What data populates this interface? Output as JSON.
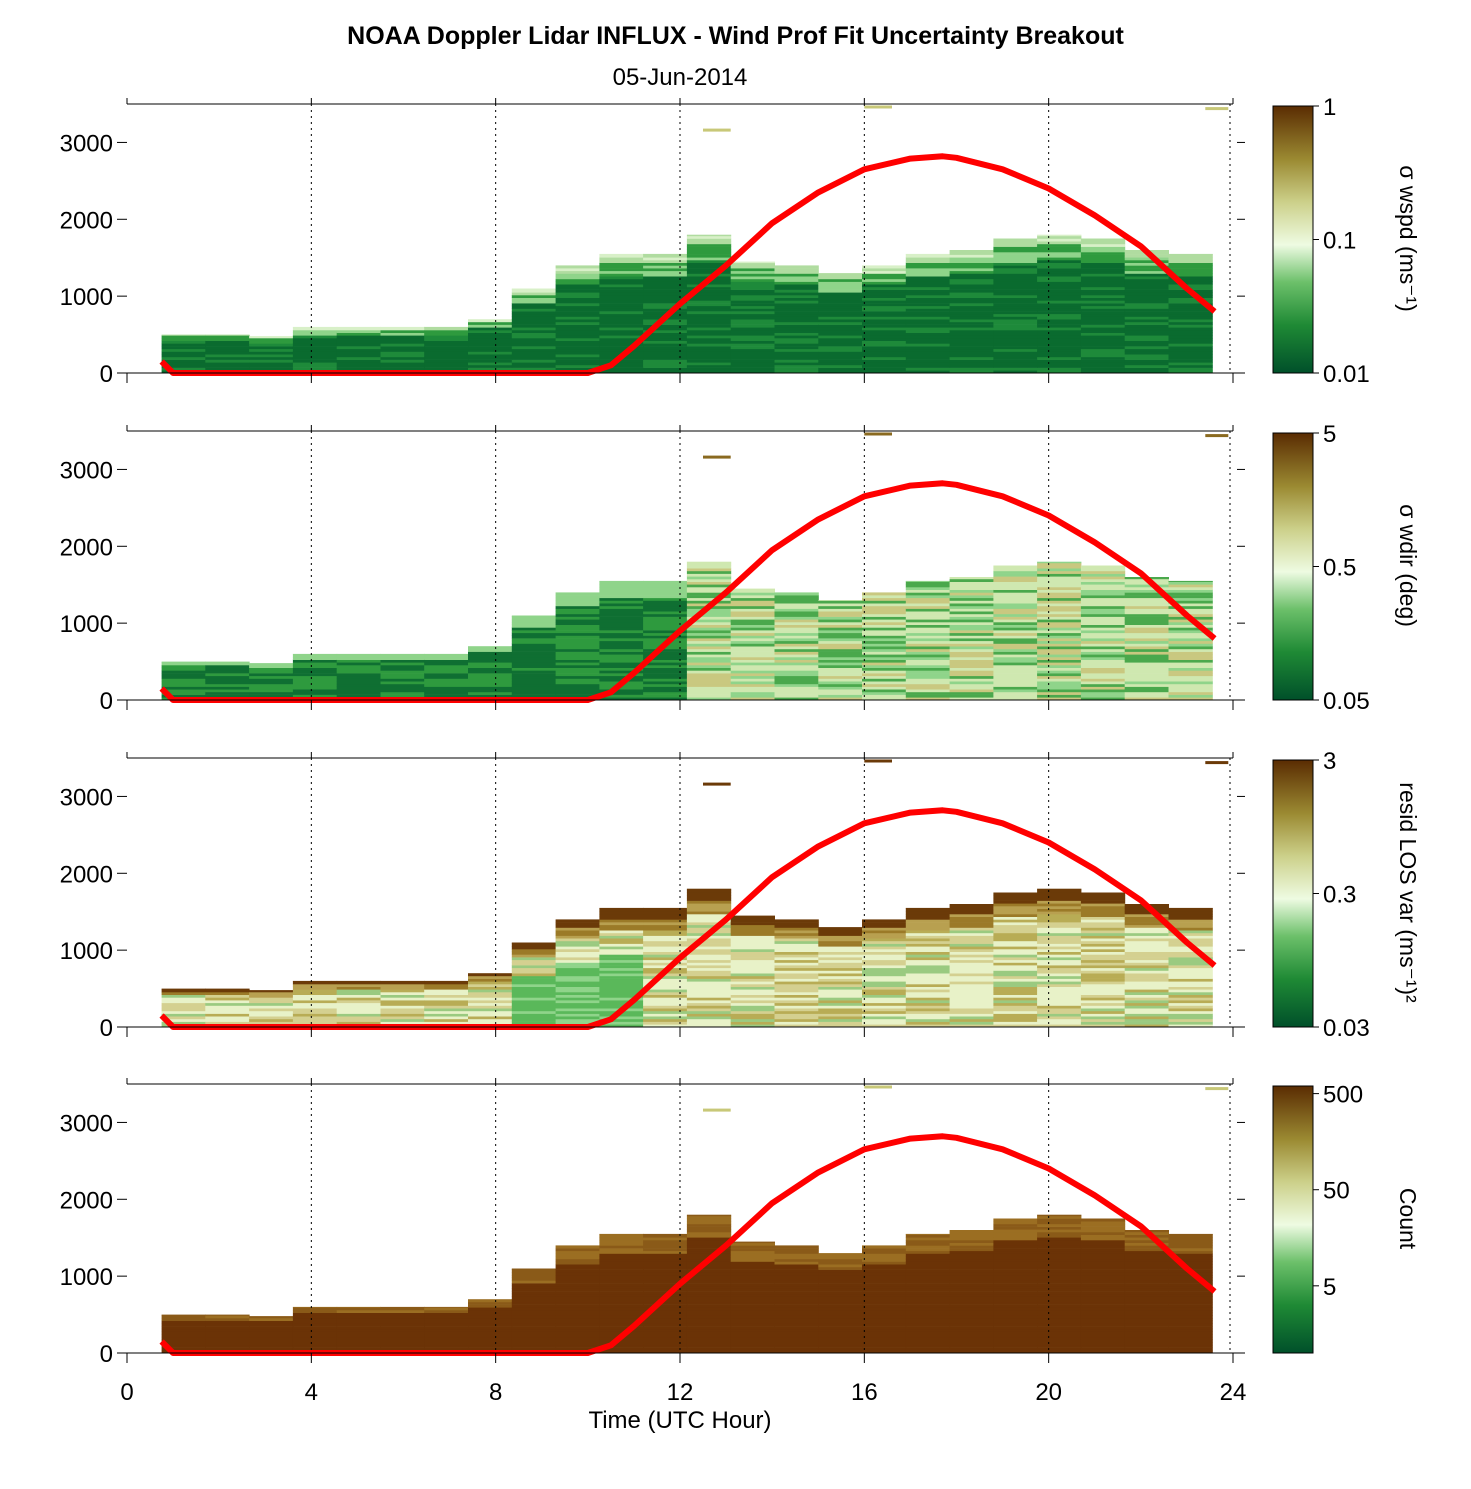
{
  "figure": {
    "title": "NOAA Doppler Lidar INFLUX - Wind Prof Fit Uncertainty Breakout",
    "subtitle": "05-Jun-2014"
  },
  "chart_data": [
    {
      "type": "heatmap",
      "panel": 1,
      "xlabel": "Time (UTC Hour)",
      "ylabel": "",
      "xlim": [
        0,
        24
      ],
      "ylim": [
        0,
        3500
      ],
      "xticks": [
        "0",
        "4",
        "8",
        "12",
        "16",
        "20",
        "24"
      ],
      "yticks": [
        "0",
        "1000",
        "2000",
        "3000"
      ],
      "grid": "vertical dotted lines at x ticks",
      "colorbar": {
        "label": "σ wspd (ms⁻¹)",
        "scale": "log",
        "ticks": [
          "0.01",
          "0.1",
          "1"
        ],
        "range": [
          0.01,
          1
        ]
      },
      "data_top_height": [
        500,
        500,
        480,
        600,
        600,
        600,
        600,
        700,
        1100,
        1400,
        1550,
        1550,
        1800,
        1450,
        1400,
        1300,
        1400,
        1550,
        1600,
        1750,
        1800,
        1750,
        1600,
        1550
      ],
      "overlay": {
        "name": "",
        "color": "#ff0000",
        "description": "red curve",
        "x": [
          0.75,
          1,
          2,
          4,
          6,
          8,
          10,
          10.5,
          11,
          12,
          13,
          14,
          15,
          16,
          17,
          17.7,
          18,
          19,
          20,
          21,
          22,
          23,
          23.6
        ],
        "y": [
          150,
          0,
          0,
          0,
          0,
          0,
          0,
          100,
          350,
          900,
          1400,
          1950,
          2350,
          2650,
          2790,
          2820,
          2800,
          2650,
          2400,
          2050,
          1650,
          1100,
          800
        ]
      }
    },
    {
      "type": "heatmap",
      "panel": 2,
      "xlabel": "Time (UTC Hour)",
      "ylabel": "",
      "xlim": [
        0,
        24
      ],
      "ylim": [
        0,
        3500
      ],
      "xticks": [
        "0",
        "4",
        "8",
        "12",
        "16",
        "20",
        "24"
      ],
      "yticks": [
        "0",
        "1000",
        "2000",
        "3000"
      ],
      "grid": "vertical dotted lines at x ticks",
      "colorbar": {
        "label": "σ wdir (deg)",
        "scale": "log",
        "ticks": [
          "0.05",
          "0.5",
          "5"
        ],
        "range": [
          0.05,
          5
        ]
      },
      "overlay": {
        "name": "",
        "color": "#ff0000",
        "description": "red curve (same as panel 1)"
      }
    },
    {
      "type": "heatmap",
      "panel": 3,
      "xlabel": "Time (UTC Hour)",
      "ylabel": "",
      "xlim": [
        0,
        24
      ],
      "ylim": [
        0,
        3500
      ],
      "xticks": [
        "0",
        "4",
        "8",
        "12",
        "16",
        "20",
        "24"
      ],
      "yticks": [
        "0",
        "1000",
        "2000",
        "3000"
      ],
      "grid": "vertical dotted lines at x ticks",
      "colorbar": {
        "label": "resid LOS var (ms⁻¹)²",
        "scale": "log",
        "ticks": [
          "0.03",
          "0.3",
          "3"
        ],
        "range": [
          0.03,
          3
        ]
      },
      "overlay": {
        "name": "",
        "color": "#ff0000",
        "description": "red curve (same as panel 1)"
      }
    },
    {
      "type": "heatmap",
      "panel": 4,
      "xlabel": "Time (UTC Hour)",
      "ylabel": "",
      "xlim": [
        0,
        24
      ],
      "ylim": [
        0,
        3500
      ],
      "xticks": [
        "0",
        "4",
        "8",
        "12",
        "16",
        "20",
        "24"
      ],
      "yticks": [
        "0",
        "1000",
        "2000",
        "3000"
      ],
      "grid": "vertical dotted lines at x ticks",
      "colorbar": {
        "label": "Count",
        "scale": "log",
        "ticks": [
          "5",
          "50",
          "500"
        ],
        "range": [
          1,
          600
        ]
      },
      "overlay": {
        "name": "",
        "color": "#ff0000",
        "description": "red curve (same as panel 1)"
      }
    }
  ],
  "colors": {
    "dark_green": "#00602a",
    "mid_green": "#2e9a3e",
    "light_green": "#8fd48a",
    "pale": "#eaf8dc",
    "tan": "#b8ac55",
    "brown": "#6b3a08",
    "curve": "#ff0000"
  }
}
